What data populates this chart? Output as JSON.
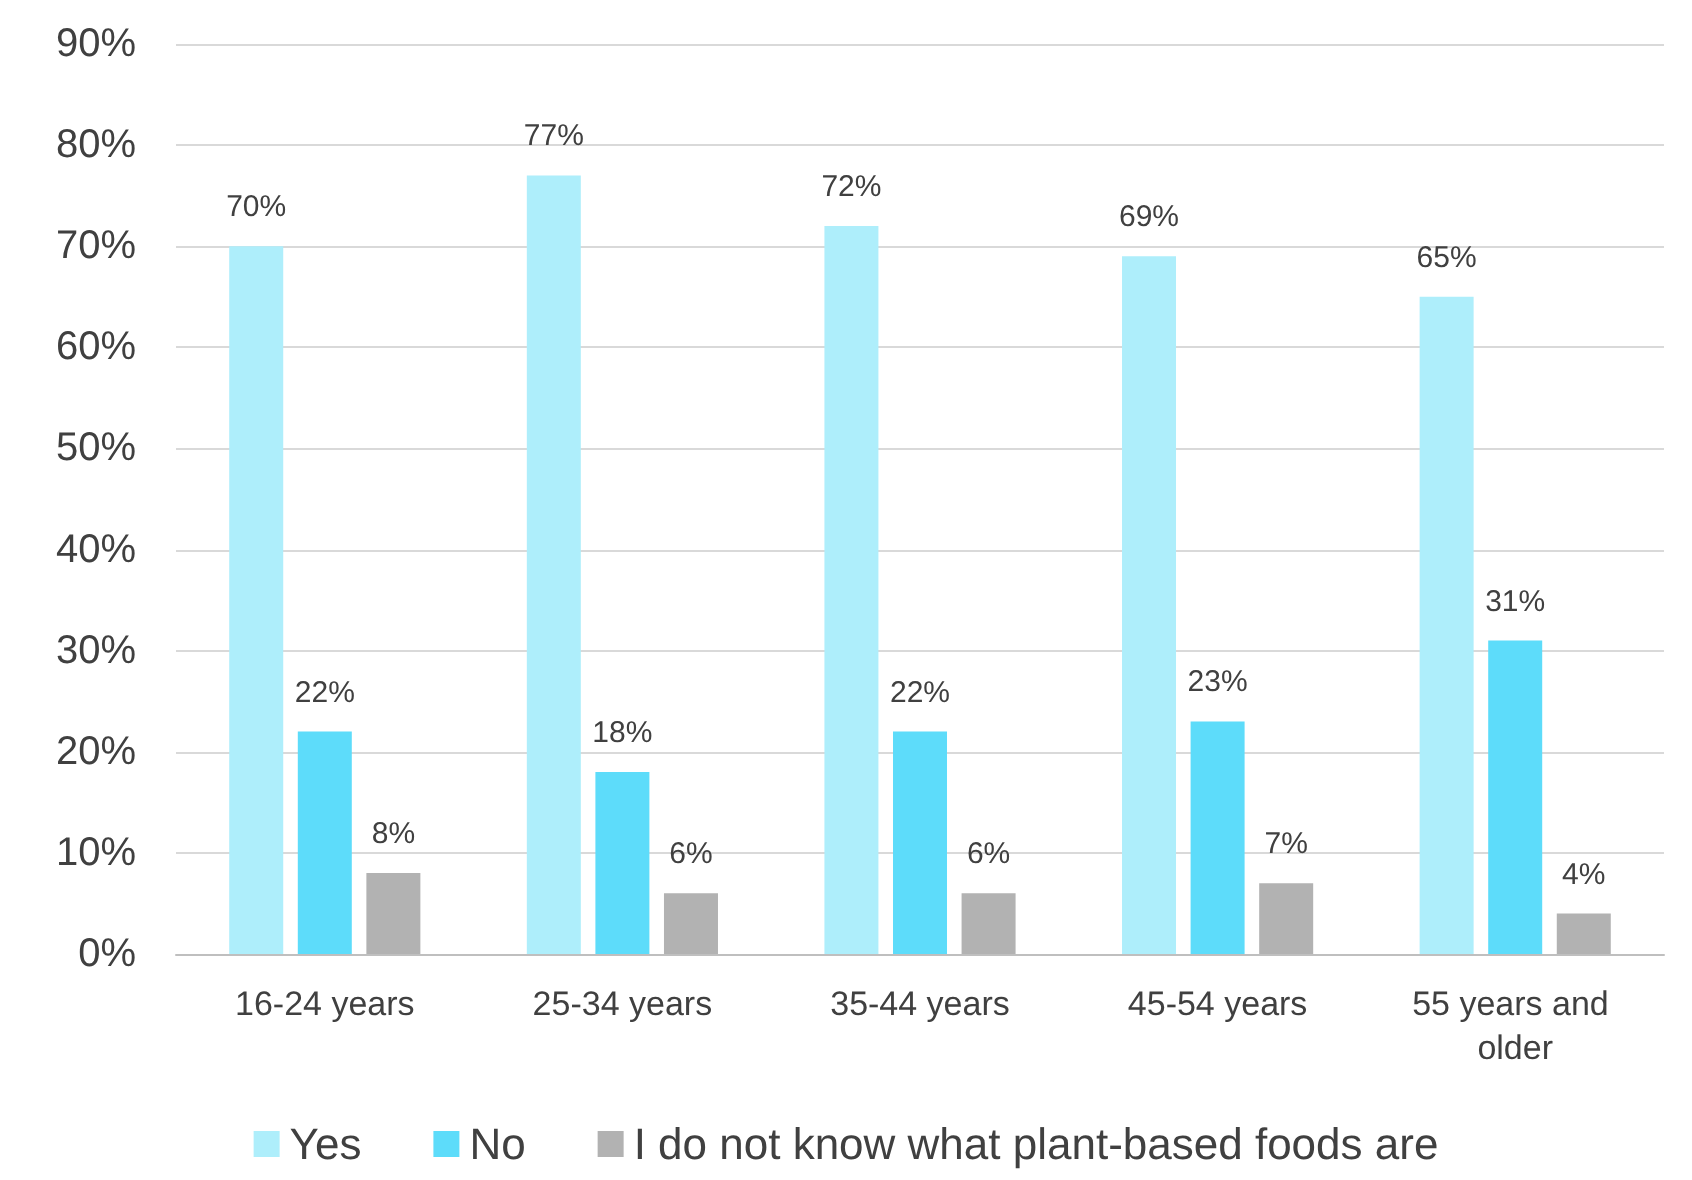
{
  "chart_data": {
    "type": "bar",
    "categories": [
      "16-24 years",
      "25-34 years",
      "35-44 years",
      "45-54 years",
      "55 years and older"
    ],
    "series": [
      {
        "name": "Yes",
        "color": "#aeeefb",
        "values": [
          70,
          77,
          72,
          69,
          65
        ],
        "value_labels": [
          "70%",
          "77%",
          "72%",
          "69%",
          "65%"
        ]
      },
      {
        "name": "No",
        "color": "#5ddcfa",
        "values": [
          22,
          18,
          22,
          23,
          31
        ],
        "value_labels": [
          "22%",
          "18%",
          "22%",
          "23%",
          "31%"
        ]
      },
      {
        "name": "I do not know what plant-based foods are",
        "color": "#b2b2b2",
        "values": [
          8,
          6,
          6,
          7,
          4
        ],
        "value_labels": [
          "8%",
          "6%",
          "6%",
          "7%",
          "4%"
        ]
      }
    ],
    "ylim": [
      0,
      90
    ],
    "yticks": [
      {
        "value": 0,
        "label": "0%"
      },
      {
        "value": 10,
        "label": "10%"
      },
      {
        "value": 20,
        "label": "20%"
      },
      {
        "value": 30,
        "label": "30%"
      },
      {
        "value": 40,
        "label": "40%"
      },
      {
        "value": 50,
        "label": "50%"
      },
      {
        "value": 60,
        "label": "60%"
      },
      {
        "value": 70,
        "label": "70%"
      },
      {
        "value": 80,
        "label": "80%"
      },
      {
        "value": 90,
        "label": "90%"
      }
    ],
    "grid": "y",
    "legend": "bottom"
  }
}
